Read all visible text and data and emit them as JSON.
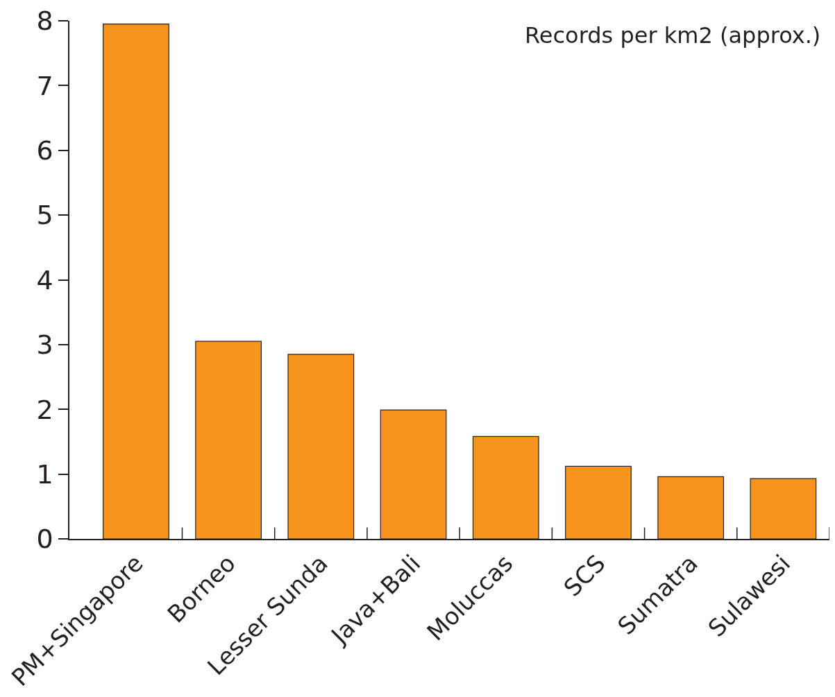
{
  "chart_data": {
    "type": "bar",
    "title": "Records per km2 (approx.)",
    "categories": [
      "PM+Singapore",
      "Borneo",
      "Lesser Sunda",
      "Java+Bali",
      "Moluccas",
      "SCS",
      "Sumatra",
      "Sulawesi"
    ],
    "values": [
      7.95,
      3.05,
      2.85,
      1.99,
      1.58,
      1.12,
      0.96,
      0.93
    ],
    "color": "#f7941d",
    "ylim": [
      0,
      8
    ],
    "yticks": [
      0,
      1,
      2,
      3,
      4,
      5,
      6,
      7,
      8
    ]
  }
}
